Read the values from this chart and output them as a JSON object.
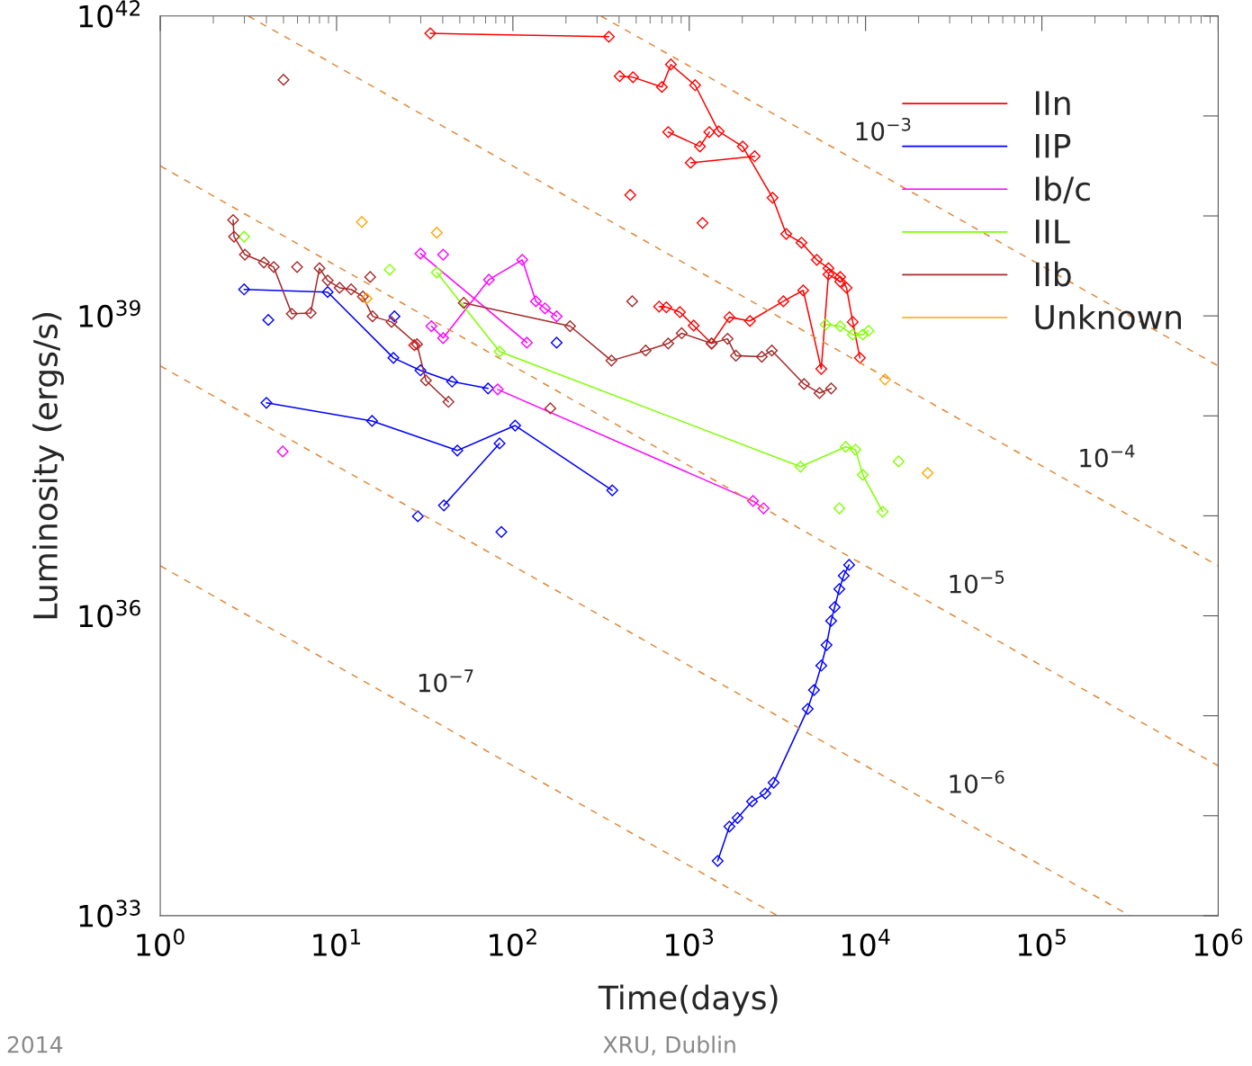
{
  "chart_data": {
    "type": "line",
    "xlabel": "Time(days)",
    "ylabel": "Luminosity (ergs/s)",
    "log": "xy",
    "marker": "diamond",
    "legend": "top right",
    "grid": false,
    "xlim": [
      1,
      1000000
    ],
    "xticks": [
      {
        "value": 1,
        "label": "10$^{0}$"
      },
      {
        "value": 10,
        "label": "10$^{1}$"
      },
      {
        "value": 100,
        "label": "10$^{2}$"
      },
      {
        "value": 1000,
        "label": "10$^{3}$"
      },
      {
        "value": 10000,
        "label": "10$^{4}$"
      },
      {
        "value": 100000,
        "label": "10$^{5}$"
      },
      {
        "value": 1000000,
        "label": "10$^{6}$"
      }
    ],
    "ylim": [
      1e+33,
      1e+42
    ],
    "yticks": [
      {
        "value": 1e+33,
        "label": "10$^{33}$"
      },
      {
        "value": 1e+36,
        "label": "10$^{36}$"
      },
      {
        "value": 1e+39,
        "label": "10$^{39}$"
      },
      {
        "value": 1e+42,
        "label": "10$^{42}$"
      }
    ],
    "series": [
      {
        "name": "IIn",
        "color": "#ff0000",
        "x": [
          34,
          350
        ],
        "values": [
          6.7e+41,
          6.2e+41
        ]
      },
      {
        "color": "#ff0000",
        "x": [
          403,
          480,
          700,
          787,
          1080,
          1470,
          2010,
          2970,
          3550,
          4330,
          5290,
          6160,
          7180,
          7800,
          8460,
          9290
        ],
        "values": [
          2.5e+41,
          2.44e+41,
          1.95e+41,
          3.27e+41,
          2.03e+41,
          7e+40,
          4.95e+40,
          1.52e+40,
          6.6e+39,
          5.4e+39,
          3.64e+39,
          3e+39,
          2.45e+39,
          1.91e+39,
          8.7e+38,
          3.8e+38
        ]
      },
      {
        "color": "#ff0000",
        "x": [
          760,
          1150,
          1300
        ],
        "values": [
          6.9e+40,
          4.95e+40,
          6.9e+40
        ]
      },
      {
        "color": "#ff0000",
        "x": [
          1020,
          2350
        ],
        "values": [
          3.4e+40,
          3.95e+40
        ]
      },
      {
        "color": "#ff0000",
        "x": [
          463
        ],
        "values": [
          1.62e+40
        ]
      },
      {
        "color": "#ff0000",
        "x": [
          1190
        ],
        "values": [
          8.5e+39
        ]
      },
      {
        "color": "#ff0000",
        "x": [
          27.6
        ],
        "values": [
          5.1e+38
        ]
      },
      {
        "color": "#ff0000",
        "x": [
          675,
          742,
          885,
          1060,
          1340,
          1690,
          2210,
          3420,
          4430,
          5610,
          6160,
          7180
        ],
        "values": [
          1.24e+39,
          1.22e+39,
          1.09e+39,
          8e+38,
          5.3e+38,
          9.7e+38,
          8.9e+38,
          1.4e+39,
          1.8e+39,
          2.95e+38,
          2.6e+39,
          2.2e+39
        ]
      },
      {
        "name": "IIP",
        "color": "#0000ff",
        "x": [
          4.0,
          15.9,
          48.4,
          103,
          366
        ],
        "values": [
          1.35e+38,
          8.9e+37,
          4.5e+37,
          8e+37,
          1.8e+37
        ]
      },
      {
        "color": "#0000ff",
        "x": [
          40.6,
          84
        ],
        "values": [
          1.27e+37,
          5.3e+37
        ]
      },
      {
        "color": "#0000ff",
        "x": [
          2.99,
          8.9,
          21,
          29.9,
          45.2,
          72.3
        ],
        "values": [
          1.84e+39,
          1.73e+39,
          3.8e+38,
          2.85e+38,
          2.2e+38,
          1.88e+38
        ]
      },
      {
        "color": "#0000ff",
        "x": [
          4.1
        ],
        "values": [
          9.1e+38
        ]
      },
      {
        "color": "#0000ff",
        "x": [
          21.3
        ],
        "values": [
          9.9e+38
        ]
      },
      {
        "color": "#0000ff",
        "x": [
          177
        ],
        "values": [
          5.4e+38
        ]
      },
      {
        "color": "#0000ff",
        "x": [
          28.9
        ],
        "values": [
          9.9e+36
        ]
      },
      {
        "color": "#0000ff",
        "x": [
          86
        ],
        "values": [
          6.9e+36
        ]
      },
      {
        "color": "#0000ff",
        "x": [
          1450,
          1690,
          1880,
          2270,
          2700,
          3010,
          4700,
          5100,
          5610,
          6010,
          6380,
          6680,
          7100,
          7520,
          8070
        ],
        "values": [
          3.53e+33,
          7.8e+33,
          9.5e+33,
          1.39e+34,
          1.67e+34,
          2.14e+34,
          1.17e+35,
          1.81e+35,
          3.17e+35,
          5.1e+35,
          8.9e+35,
          1.22e+36,
          1.85e+36,
          2.52e+36,
          3.23e+36
        ]
      },
      {
        "name": "Ib/c",
        "color": "#ff00ff",
        "x": [
          29.9,
          120
        ],
        "values": [
          4.2e+39,
          5.4e+38
        ]
      },
      {
        "color": "#ff00ff",
        "x": [
          34.5,
          40.2,
          73.1,
          113,
          135,
          152,
          177
        ],
        "values": [
          7.9e+38,
          6e+38,
          2.3e+39,
          3.64e+39,
          1.4e+39,
          1.19e+39,
          9.9e+38
        ]
      },
      {
        "color": "#ff00ff",
        "x": [
          40.2
        ],
        "values": [
          4.1e+39
        ]
      },
      {
        "color": "#ff00ff",
        "x": [
          82,
          2300,
          2640
        ],
        "values": [
          1.84e+38,
          1.41e+37,
          1.19e+37
        ]
      },
      {
        "color": "#ff00ff",
        "x": [
          4.95
        ],
        "values": [
          4.4e+37
        ]
      },
      {
        "name": "IIL",
        "color": "#80ff00",
        "x": [
          37,
          84,
          4280,
          7710,
          8770,
          9640,
          12500
        ],
        "values": [
          2.72e+39,
          4.4e+38,
          3.1e+37,
          4.9e+37,
          4.6e+37,
          2.57e+37,
          1.1e+37
        ]
      },
      {
        "color": "#80ff00",
        "x": [
          2.99
        ],
        "values": [
          6.2e+39
        ]
      },
      {
        "color": "#80ff00",
        "x": [
          20.0
        ],
        "values": [
          2.9e+39
        ]
      },
      {
        "color": "#80ff00",
        "x": [
          7100
        ],
        "values": [
          1.19e+37
        ]
      },
      {
        "color": "#80ff00",
        "x": [
          15400
        ],
        "values": [
          3.5e+37
        ]
      },
      {
        "color": "#80ff00",
        "x": [
          5950,
          7180,
          8460,
          9640,
          10400
        ],
        "values": [
          8.2e+38,
          7.9e+38,
          6.5e+38,
          6.5e+38,
          7.1e+38
        ]
      },
      {
        "name": "IIb",
        "color": "#a52a2a",
        "x": [
          2.59,
          2.62,
          3.02,
          3.87,
          4.4,
          5.57,
          7.13,
          8.0,
          8.9,
          10.4,
          12.1,
          14.1,
          16.0,
          20.5,
          28.6,
          32.1,
          43.1
        ],
        "values": [
          9.1e+39,
          6.2e+39,
          4.1e+39,
          3.42e+39,
          3.08e+39,
          1.05e+39,
          1.07e+39,
          3e+39,
          2.26e+39,
          1.91e+39,
          1.84e+39,
          1.56e+39,
          9.9e+38,
          8.7e+38,
          5.2e+38,
          2.26e+38,
          1.38e+38
        ]
      },
      {
        "color": "#a52a2a",
        "x": [
          52.6,
          211,
          362,
          566,
          760,
          906,
          1340,
          1650,
          1840,
          2580,
          2940,
          4480,
          5480,
          6380
        ],
        "values": [
          1.35e+39,
          7.9e+38,
          3.57e+38,
          4.5e+38,
          5.3e+38,
          6.7e+38,
          5.3e+38,
          5.9e+38,
          4e+38,
          3.9e+38,
          4.5e+38,
          2.08e+38,
          1.69e+38,
          1.88e+38
        ]
      },
      {
        "color": "#a52a2a",
        "x": [
          5.0
        ],
        "values": [
          2.3e+41
        ]
      },
      {
        "color": "#a52a2a",
        "x": [
          475
        ],
        "values": [
          1.4e+39
        ]
      },
      {
        "color": "#a52a2a",
        "x": [
          163
        ],
        "values": [
          1.19e+38
        ]
      },
      {
        "color": "#a52a2a",
        "x": [
          5.97
        ],
        "values": [
          3.08e+39
        ]
      },
      {
        "color": "#a52a2a",
        "x": [
          15.5
        ],
        "values": [
          2.45e+39
        ]
      },
      {
        "name": "Unknown",
        "color": "#ffa500",
        "x": [
          13.9
        ],
        "values": [
          8.7e+39
        ]
      },
      {
        "color": "#ffa500",
        "x": [
          37
        ],
        "values": [
          6.8e+39
        ]
      },
      {
        "color": "#ffa500",
        "x": [
          14.8
        ],
        "values": [
          1.49e+39
        ]
      },
      {
        "color": "#ffa500",
        "x": [
          12900
        ],
        "values": [
          2.31e+38
        ]
      },
      {
        "color": "#ffa500",
        "x": [
          22500
        ],
        "values": [
          2.68e+37
        ]
      },
      {
        "color": "#e08a3c",
        "marker": "none",
        "line_style": "dashed",
        "x": [
          316,
          1000000
        ],
        "values": [
          1e+42,
          3.16e+38
        ]
      },
      {
        "color": "#e08a3c",
        "marker": "none",
        "line_style": "dashed",
        "x": [
          3.16,
          1000000
        ],
        "values": [
          1e+42,
          3.16e+36
        ]
      },
      {
        "color": "#e08a3c",
        "marker": "none",
        "line_style": "dashed",
        "x": [
          1,
          1000000
        ],
        "values": [
          3.16e+40,
          3.16e+34
        ]
      },
      {
        "color": "#e08a3c",
        "marker": "none",
        "line_style": "dashed",
        "x": [
          1,
          316000
        ],
        "values": [
          3.16e+38,
          1e+33
        ]
      },
      {
        "color": "#e08a3c",
        "marker": "none",
        "line_style": "dashed",
        "x": [
          1,
          3162
        ],
        "values": [
          3.16e+36,
          1e+33
        ]
      }
    ],
    "annotations": [
      {
        "text": "10$^{−3}$",
        "x": 12600,
        "y": 2.5e+40
      },
      {
        "text": "10$^{−4}$",
        "x": 234000,
        "y": 1.35e+37
      },
      {
        "text": "10$^{−5}$",
        "x": 42700,
        "y": 7.4e+35
      },
      {
        "text": "10$^{−6}$",
        "x": 42700,
        "y": 7.4e+33
      },
      {
        "text": "10$^{−7}$",
        "x": 41.7,
        "y": 7.6e+34
      },
      "2014",
      "XRU, Dublin"
    ]
  }
}
